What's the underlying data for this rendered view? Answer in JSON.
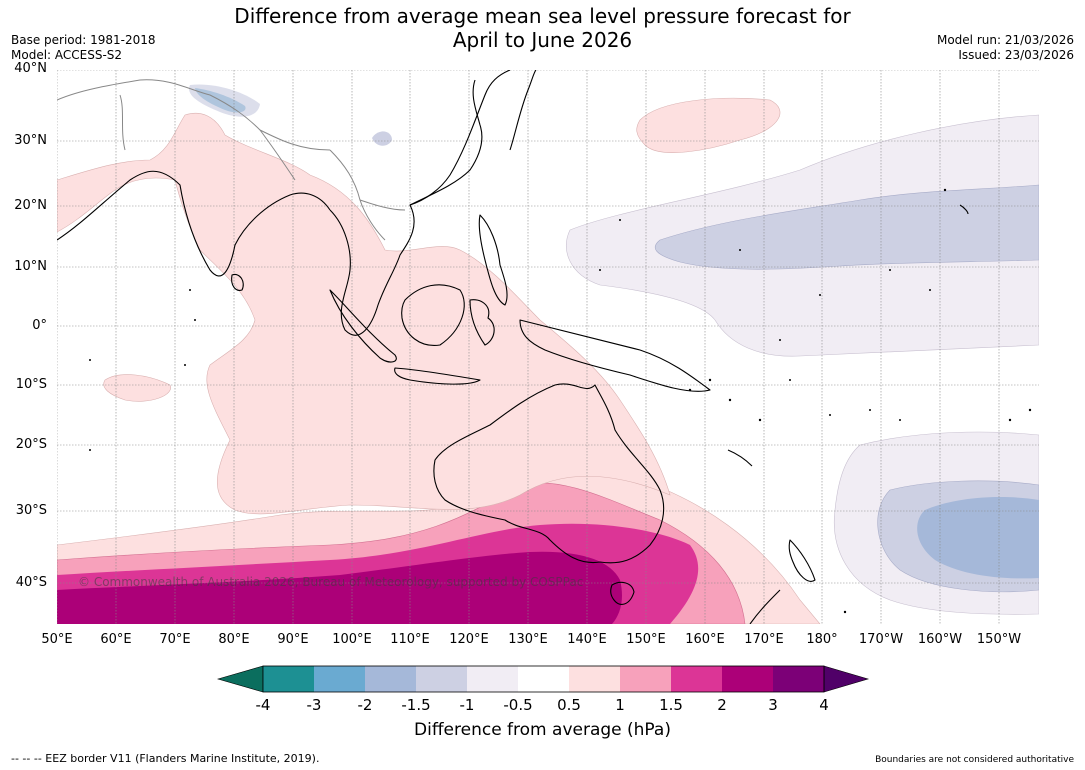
{
  "title": {
    "line1": "Difference from average mean sea level pressure forecast for",
    "line2": "April to June 2026"
  },
  "meta": {
    "base_period": "Base period: 1981-2018",
    "model": "Model: ACCESS-S2",
    "model_run": "Model run: 21/03/2026",
    "issued": "Issued: 23/03/2026"
  },
  "axes": {
    "lat_labels": [
      "40°N",
      "30°N",
      "20°N",
      "10°N",
      "0°",
      "10°S",
      "20°S",
      "30°S",
      "40°S"
    ],
    "lon_labels": [
      "50°E",
      "60°E",
      "70°E",
      "80°E",
      "90°E",
      "100°E",
      "110°E",
      "120°E",
      "130°E",
      "140°E",
      "150°E",
      "160°E",
      "170°E",
      "180°",
      "170°W",
      "160°W",
      "150°W"
    ]
  },
  "colorbar": {
    "ticks": [
      "-4",
      "-3",
      "-2",
      "-1.5",
      "-1",
      "-0.5",
      "0.5",
      "1",
      "1.5",
      "2",
      "3",
      "4"
    ],
    "colors": [
      "#0b6e5e",
      "#1d9093",
      "#6aaad1",
      "#a5b8d9",
      "#cdd0e3",
      "#f1edf4",
      "#ffffff",
      "#fde0e0",
      "#f7a1bb",
      "#dc3596",
      "#ac0078",
      "#7c0077",
      "#500068"
    ],
    "label": "Difference from average (hPa)"
  },
  "copyright": "© Commonwealth of Australia 2026, Bureau of Meteorology, supported by COSPPac",
  "footer": {
    "legend": "--  --  -- EEZ border V11 (Flanders Marine Institute, 2019).",
    "disclaimer": "Boundaries are not considered authoritative"
  }
}
